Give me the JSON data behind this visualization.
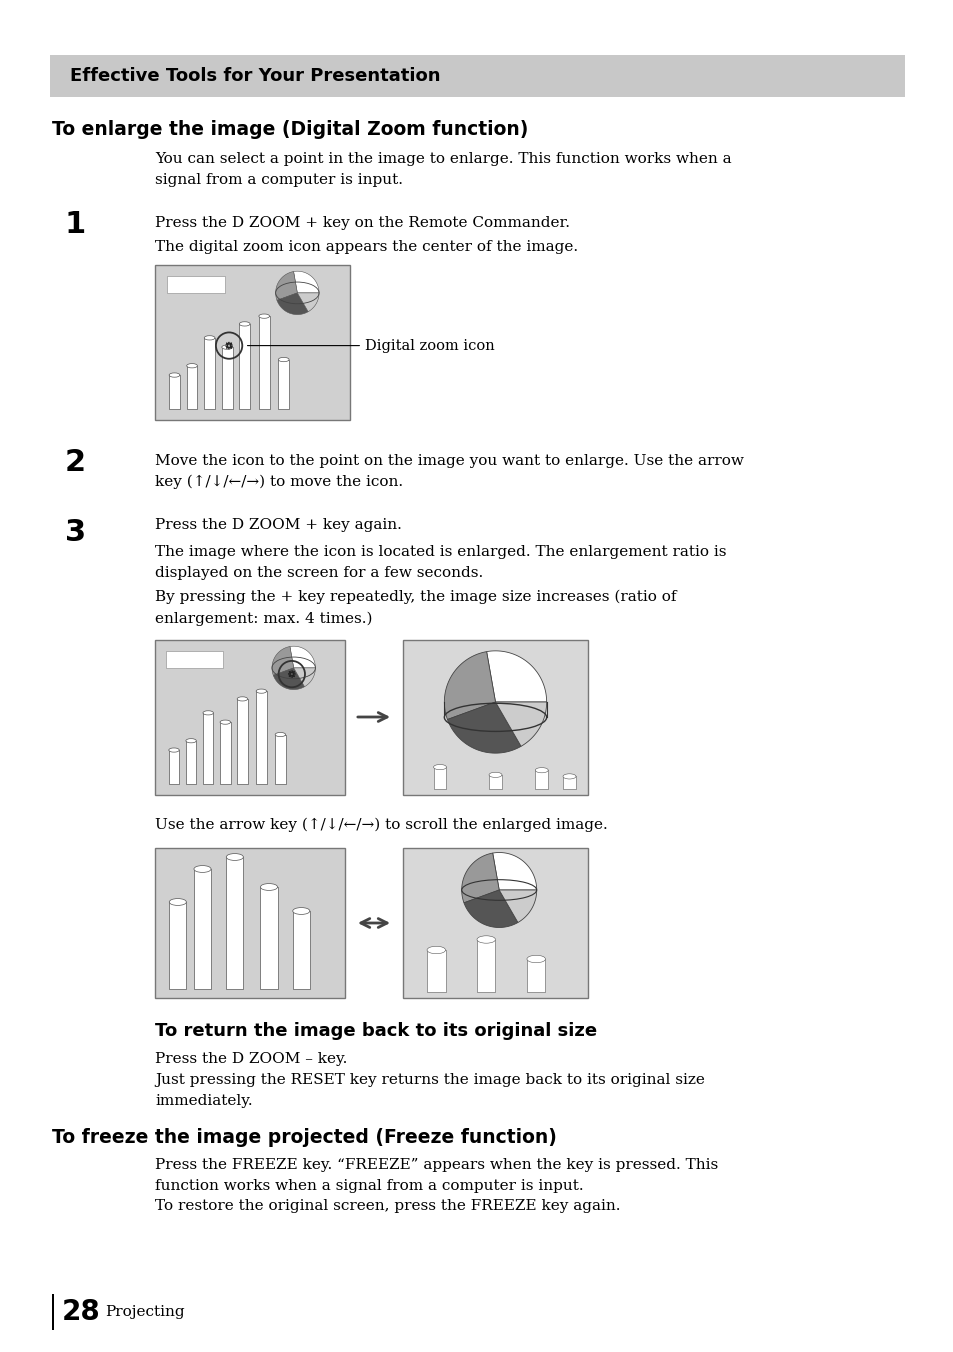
{
  "title_bar_text": "Effective Tools for Your Presentation",
  "title_bar_bg": "#c8c8c8",
  "page_bg": "#ffffff",
  "section1_heading": "To enlarge the image (Digital Zoom function)",
  "section1_intro": "You can select a point in the image to enlarge. This function works when a\nsignal from a computer is input.",
  "step1_num": "1",
  "step1_text": "Press the D ZOOM + key on the Remote Commander.",
  "step1_subtext": "The digital zoom icon appears the center of the image.",
  "step1_annotation": "Digital zoom icon",
  "step2_num": "2",
  "step2_text": "Move the icon to the point on the image you want to enlarge. Use the arrow\nkey (↑/↓/←/→) to move the icon.",
  "step3_num": "3",
  "step3_text": "Press the D ZOOM + key again.",
  "step3_sub1": "The image where the icon is located is enlarged. The enlargement ratio is\ndisplayed on the screen for a few seconds.",
  "step3_sub2": "By pressing the + key repeatedly, the image size increases (ratio of\nenlargement: max. 4 times.)",
  "scroll_text": "Use the arrow key (↑/↓/←/→) to scroll the enlarged image.",
  "section2_heading": "To return the image back to its original size",
  "section2_text1": "Press the D ZOOM – key.",
  "section2_text2": "Just pressing the RESET key returns the image back to its original size\nimmediately.",
  "section3_heading": "To freeze the image projected (Freeze function)",
  "section3_text": "Press the FREEZE key. “FREEZE” appears when the key is pressed. This\nfunction works when a signal from a computer is input.\nTo restore the original screen, press the FREEZE key again.",
  "footer_num": "28",
  "footer_text": "Projecting"
}
